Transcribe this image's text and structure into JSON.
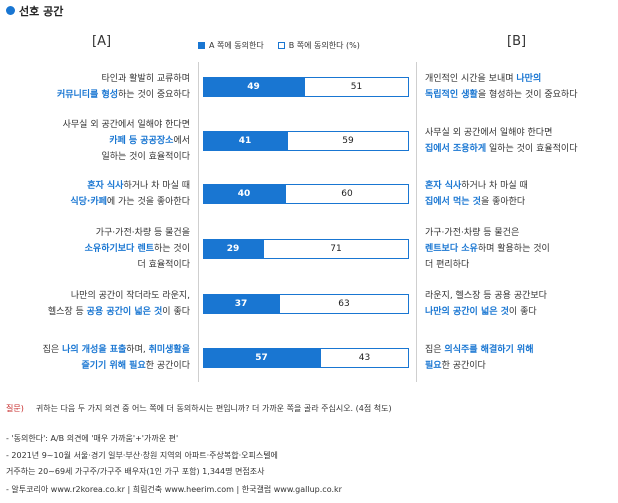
{
  "title": "선호 공간",
  "column_labels": {
    "a": "[A]",
    "b": "[B]"
  },
  "legend": {
    "a": "A 쪽에 동의한다",
    "b": "B 쪽에 동의한다 (%)"
  },
  "rows": [
    {
      "left": [
        [
          {
            "t": "타인과 활발히 교류하며"
          }
        ],
        [
          {
            "t": "커뮤니티를 형성",
            "hl": true
          },
          {
            "t": "하는 것이 중요하다"
          }
        ]
      ],
      "right": [
        [
          {
            "t": "개인적인 시간을 보내며 "
          },
          {
            "t": "나만의",
            "hl": true
          }
        ],
        [
          {
            "t": "독립적인 생활",
            "hl": true
          },
          {
            "t": "을 형성하는 것이 중요하다"
          }
        ]
      ],
      "a": "49",
      "b": "51"
    },
    {
      "left": [
        [
          {
            "t": "사무실 외 공간에서 일해야 한다면"
          }
        ],
        [
          {
            "t": "카페 등 공공장소",
            "hl": true
          },
          {
            "t": "에서"
          }
        ],
        [
          {
            "t": "일하는 것이 효율적이다"
          }
        ]
      ],
      "right": [
        [
          {
            "t": "사무실 외 공간에서 일해야 한다면"
          }
        ],
        [
          {
            "t": "집에서 조용하게",
            "hl": true
          },
          {
            "t": " 일하는 것이 효율적이다"
          }
        ]
      ],
      "a": "41",
      "b": "59"
    },
    {
      "left": [
        [
          {
            "t": "혼자 식사",
            "hl": true
          },
          {
            "t": "하거나 차 마실 때"
          }
        ],
        [
          {
            "t": "식당·카페",
            "hl": true
          },
          {
            "t": "에 가는 것을 좋아한다"
          }
        ]
      ],
      "right": [
        [
          {
            "t": "혼자 식사",
            "hl": true
          },
          {
            "t": "하거나 차 마실 때"
          }
        ],
        [
          {
            "t": "집에서 먹는 것",
            "hl": true
          },
          {
            "t": "을 좋아한다"
          }
        ]
      ],
      "a": "40",
      "b": "60"
    },
    {
      "left": [
        [
          {
            "t": "가구·가전·차량 등 물건을"
          }
        ],
        [
          {
            "t": "소유하기보다 렌트",
            "hl": true
          },
          {
            "t": "하는 것이"
          }
        ],
        [
          {
            "t": "더 효율적이다"
          }
        ]
      ],
      "right": [
        [
          {
            "t": "가구·가전·차량 등 물건은"
          }
        ],
        [
          {
            "t": "렌트보다 소유",
            "hl": true
          },
          {
            "t": "하며 활용하는 것이"
          }
        ],
        [
          {
            "t": "더 편리하다"
          }
        ]
      ],
      "a": "29",
      "b": "71"
    },
    {
      "left": [
        [
          {
            "t": "나만의 공간이 작더라도 라운지,"
          }
        ],
        [
          {
            "t": "헬스장 등 "
          },
          {
            "t": "공용 공간이 넓은 것",
            "hl": true
          },
          {
            "t": "이 좋다"
          }
        ]
      ],
      "right": [
        [
          {
            "t": "라운지, 헬스장 등 공용 공간보다"
          }
        ],
        [
          {
            "t": "나만의 공간이 넓은 것",
            "hl": true
          },
          {
            "t": "이 좋다"
          }
        ]
      ],
      "a": "37",
      "b": "63"
    },
    {
      "left": [
        [
          {
            "t": "집은 "
          },
          {
            "t": "나의 개성을 표출",
            "hl": true
          },
          {
            "t": "하며, "
          },
          {
            "t": "취미생활을",
            "hl": true
          }
        ],
        [
          {
            "t": "즐기기 위해 필요",
            "hl": true
          },
          {
            "t": "한 공간이다"
          }
        ]
      ],
      "right": [
        [
          {
            "t": "집은 "
          },
          {
            "t": "의식주를 해결하기 위해",
            "hl": true
          }
        ],
        [
          {
            "t": "필요",
            "hl": true
          },
          {
            "t": "한 공간이다"
          }
        ]
      ],
      "a": "57",
      "b": "43"
    }
  ],
  "chart_data": {
    "type": "bar",
    "stacked": true,
    "orientation": "horizontal",
    "categories": [
      "타인과 활발히 교류하며 커뮤니티를 형성하는 것이 중요하다 / 개인적인 시간을 보내며 나만의 독립적인 생활을 형성하는 것이 중요하다",
      "사무실 외 공간에서 일해야 한다면 카페 등 공공장소에서 일하는 것이 효율적이다 / 사무실 외 공간에서 일해야 한다면 집에서 조용하게 일하는 것이 효율적이다",
      "혼자 식사하거나 차 마실 때 식당·카페에 가는 것을 좋아한다 / 혼자 식사하거나 차 마실 때 집에서 먹는 것을 좋아한다",
      "가구·가전·차량 등 물건을 소유하기보다 렌트하는 것이 더 효율적이다 / 가구·가전·차량 등 물건은 렌트보다 소유하며 활용하는 것이 더 편리하다",
      "나만의 공간이 작더라도 라운지, 헬스장 등 공용 공간이 넓은 것이 좋다 / 라운지, 헬스장 등 공용 공간보다 나만의 공간이 넓은 것이 좋다",
      "집은 나의 개성을 표출하며, 취미생활을 즐기기 위해 필요한 공간이다 / 집은 의식주를 해결하기 위해 필요한 공간이다"
    ],
    "series": [
      {
        "name": "A 쪽에 동의한다",
        "values": [
          49,
          41,
          40,
          29,
          37,
          57
        ],
        "color": "#1976d2"
      },
      {
        "name": "B 쪽에 동의한다",
        "values": [
          51,
          59,
          60,
          71,
          63,
          43
        ],
        "color": "#ffffff"
      }
    ],
    "title": "선호 공간",
    "unit": "%",
    "xlim": [
      0,
      100
    ],
    "grid": false,
    "legend_position": "top"
  },
  "question": {
    "label": "질문)",
    "text": "귀하는 다음 두 가지 의견 중 어느 쪽에 더 동의하시는 편입니까? 더 가까운 쪽을 골라 주십시오. (4점 척도)"
  },
  "notes": [
    "- '동의한다': A/B 의견에 '매우 가까움'+'가까운 편'",
    "- 2021년 9~10월 서울·경기 일부·부산·창원 지역의 아파트·주상복합·오피스텔에",
    "  거주하는 20~69세 가구주/가구주 배우자(1인 가구 포함) 1,344명 면접조사",
    "- 알투코리아 www.r2korea.co.kr | 희림건축 www.heerim.com | 한국갤럽 www.gallup.co.kr"
  ],
  "colors": {
    "accent": "#1976d2",
    "question_label": "#c62828"
  }
}
